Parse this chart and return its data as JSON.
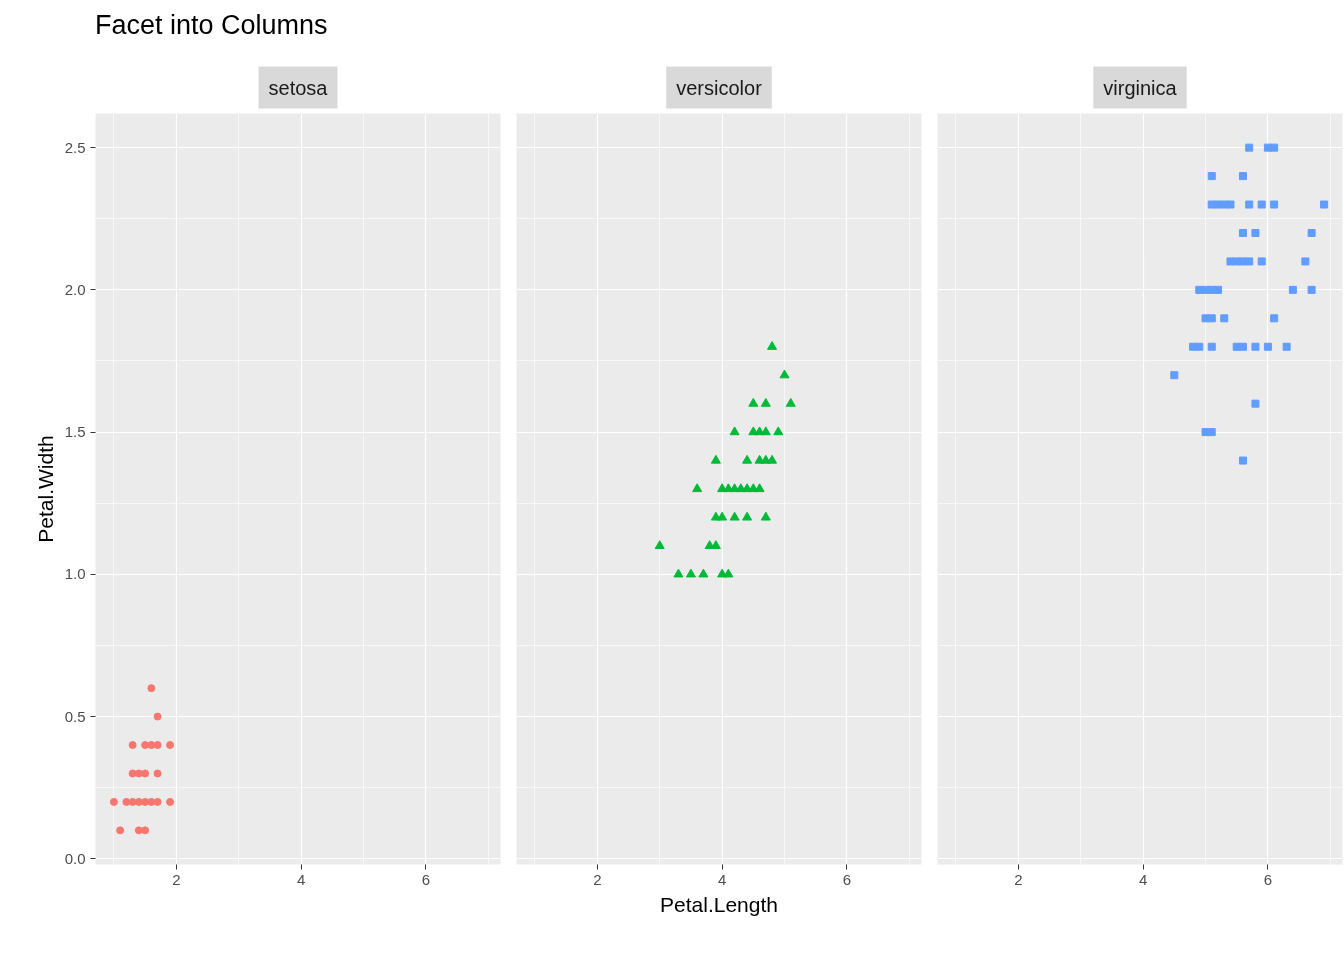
{
  "chart_data": [
    {
      "type": "scatter",
      "title": "Facet into Columns",
      "subtitle": "setosa",
      "ylabel": "Petal.Width",
      "color": "#f8766d",
      "marker": "circle",
      "grid": true,
      "legend": false,
      "x": [
        1.0,
        1.1,
        1.2,
        1.3,
        1.3,
        1.3,
        1.4,
        1.4,
        1.4,
        1.5,
        1.5,
        1.5,
        1.5,
        1.6,
        1.6,
        1.6,
        1.7,
        1.7,
        1.7,
        1.7,
        1.9,
        1.9
      ],
      "values": [
        0.2,
        0.1,
        0.2,
        0.2,
        0.3,
        0.4,
        0.1,
        0.2,
        0.3,
        0.1,
        0.2,
        0.3,
        0.4,
        0.2,
        0.4,
        0.6,
        0.2,
        0.3,
        0.4,
        0.5,
        0.2,
        0.4
      ],
      "xlim": [
        0.705,
        7.195
      ],
      "ylim": [
        -0.02,
        2.62
      ],
      "xticks": [
        2,
        4,
        6
      ],
      "yticks": [
        {
          "value": 0,
          "label": "0.0"
        },
        {
          "value": 0.5,
          "label": "0.5"
        },
        {
          "value": 1,
          "label": "1.0"
        },
        {
          "value": 1.5,
          "label": "1.5"
        },
        {
          "value": 2,
          "label": "2.0"
        },
        {
          "value": 2.5,
          "label": "2.5"
        }
      ]
    },
    {
      "type": "scatter",
      "subtitle": "versicolor",
      "xlabel": "Petal.Length",
      "color": "#00ba38",
      "marker": "triangle",
      "grid": true,
      "legend": false,
      "tick_labels": "x",
      "x": [
        3.0,
        3.3,
        3.5,
        3.6,
        3.7,
        3.8,
        3.9,
        3.9,
        3.9,
        4.0,
        4.0,
        4.0,
        4.1,
        4.1,
        4.2,
        4.2,
        4.2,
        4.3,
        4.4,
        4.4,
        4.4,
        4.5,
        4.5,
        4.5,
        4.6,
        4.6,
        4.6,
        4.7,
        4.7,
        4.7,
        4.7,
        4.8,
        4.8,
        4.9,
        5.0,
        5.1
      ],
      "values": [
        1.1,
        1.0,
        1.0,
        1.3,
        1.0,
        1.1,
        1.1,
        1.2,
        1.4,
        1.0,
        1.2,
        1.3,
        1.0,
        1.3,
        1.2,
        1.3,
        1.5,
        1.3,
        1.2,
        1.3,
        1.4,
        1.3,
        1.5,
        1.6,
        1.3,
        1.4,
        1.5,
        1.2,
        1.4,
        1.5,
        1.6,
        1.4,
        1.8,
        1.5,
        1.7,
        1.6
      ],
      "xlim": [
        0.705,
        7.195
      ],
      "ylim": [
        -0.02,
        2.62
      ],
      "xticks": [
        2,
        4,
        6
      ]
    },
    {
      "type": "scatter",
      "subtitle": "virginica",
      "color": "#619cff",
      "marker": "square",
      "grid": true,
      "legend": false,
      "tick_labels": "x",
      "x": [
        4.5,
        4.8,
        4.9,
        4.9,
        5.0,
        5.0,
        5.0,
        5.1,
        5.1,
        5.1,
        5.1,
        5.1,
        5.1,
        5.2,
        5.2,
        5.3,
        5.3,
        5.4,
        5.4,
        5.5,
        5.5,
        5.6,
        5.6,
        5.6,
        5.6,
        5.6,
        5.7,
        5.7,
        5.7,
        5.8,
        5.8,
        5.8,
        5.9,
        5.9,
        6.0,
        6.0,
        6.1,
        6.1,
        6.1,
        6.3,
        6.4,
        6.6,
        6.7,
        6.7,
        6.9
      ],
      "values": [
        1.7,
        1.8,
        1.8,
        2.0,
        1.5,
        1.9,
        2.0,
        1.5,
        1.8,
        1.9,
        2.0,
        2.3,
        2.4,
        2.0,
        2.3,
        1.9,
        2.3,
        2.1,
        2.3,
        1.8,
        2.1,
        1.4,
        1.8,
        2.1,
        2.2,
        2.4,
        2.1,
        2.3,
        2.5,
        1.6,
        1.8,
        2.2,
        2.1,
        2.3,
        1.8,
        2.5,
        1.9,
        2.3,
        2.5,
        1.8,
        2.0,
        2.1,
        2.0,
        2.2,
        2.3
      ],
      "xlim": [
        0.705,
        7.195
      ],
      "ylim": [
        -0.02,
        2.62
      ],
      "xticks": [
        2,
        4,
        6
      ]
    }
  ]
}
